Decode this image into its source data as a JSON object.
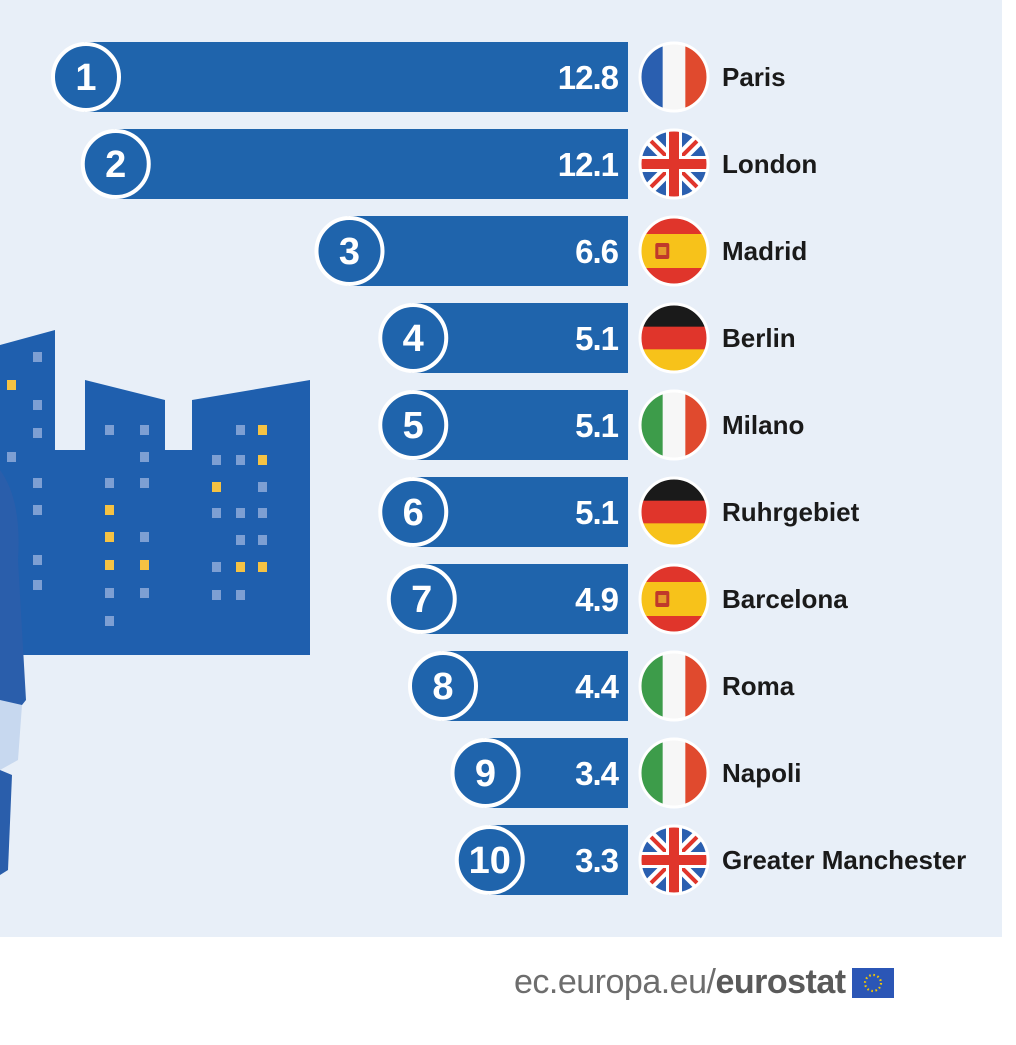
{
  "chart_data": {
    "type": "bar",
    "orientation": "horizontal",
    "categories": [
      "Paris",
      "London",
      "Madrid",
      "Berlin",
      "Milano",
      "Ruhrgebiet",
      "Barcelona",
      "Roma",
      "Napoli",
      "Greater Manchester"
    ],
    "ranks": [
      "1",
      "2",
      "3",
      "4",
      "5",
      "6",
      "7",
      "8",
      "9",
      "10"
    ],
    "values": [
      12.8,
      12.1,
      6.6,
      5.1,
      5.1,
      5.1,
      4.9,
      4.4,
      3.4,
      3.3
    ],
    "value_labels": [
      "12.8",
      "12.1",
      "6.6",
      "5.1",
      "5.1",
      "5.1",
      "4.9",
      "4.4",
      "3.4",
      "3.3"
    ],
    "flags": [
      "france-flag-icon",
      "uk-flag-icon",
      "spain-flag-icon",
      "germany-flag-icon",
      "italy-flag-icon",
      "germany-flag-icon",
      "spain-flag-icon",
      "italy-flag-icon",
      "italy-flag-icon",
      "uk-flag-icon"
    ]
  },
  "colors": {
    "background": "#e8eff8",
    "bar": "#1f64ac",
    "rank_circle": "#1f64ac",
    "building": "#1f5fae",
    "window_light": "#f5c243",
    "window_dim": "#7d9fd3"
  },
  "footer": {
    "source_prefix": "ec.europa.eu/",
    "source_brand": "eurostat"
  }
}
